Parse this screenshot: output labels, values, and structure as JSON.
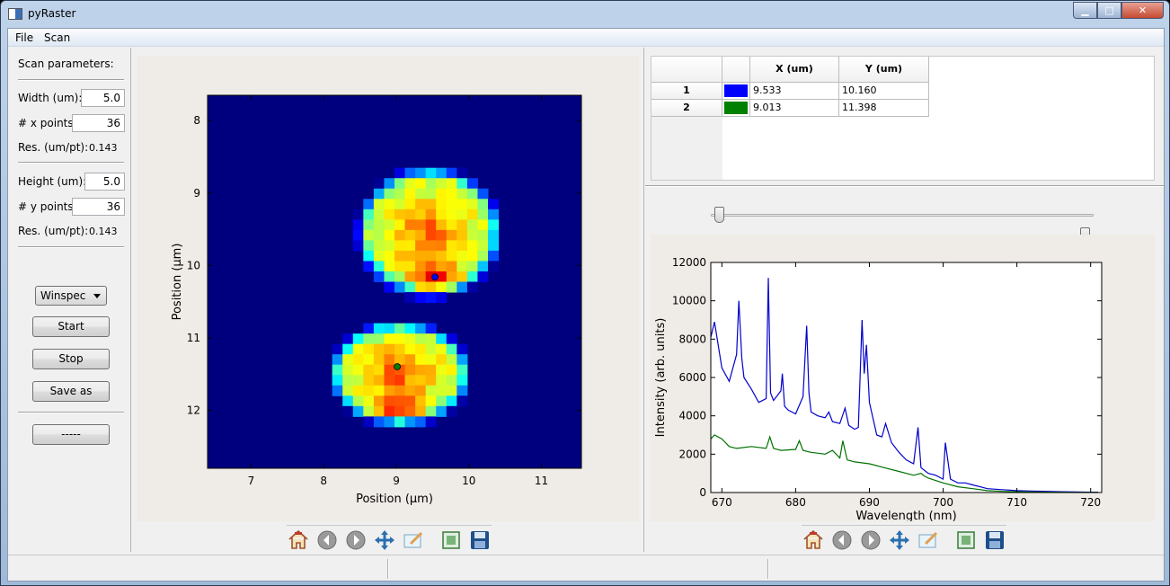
{
  "window": {
    "title": "pyRaster"
  },
  "menu": {
    "items": [
      "File",
      "Scan"
    ]
  },
  "scan_params": {
    "header": "Scan parameters:",
    "width_label": "Width (um):",
    "width_value": "5.0",
    "x_points_label": "# x points:",
    "x_points_value": "36",
    "x_res_label": "Res. (um/pt):",
    "x_res_value": "0.143",
    "height_label": "Height (um):",
    "height_value": "5.0",
    "y_points_label": "# y points:",
    "y_points_value": "36",
    "y_res_label": "Res. (um/pt):",
    "y_res_value": "0.143",
    "device_selected": "Winspec",
    "start_label": "Start",
    "stop_label": "Stop",
    "save_as_label": "Save as",
    "extra_label": "-----"
  },
  "points_table": {
    "columns": [
      "",
      "X (um)",
      "Y (um)"
    ],
    "rows": [
      {
        "index": "1",
        "color": "#0000ff",
        "x": "9.533",
        "y": "10.160"
      },
      {
        "index": "2",
        "color": "#008000",
        "x": "9.013",
        "y": "11.398"
      }
    ]
  },
  "sliders": {
    "lower_fraction": 0.01,
    "upper_fraction": 0.99
  },
  "chart_data": [
    {
      "type": "heatmap",
      "xlabel": "Position ($\\mu m$)",
      "ylabel": "Position ($\\mu m$)",
      "xlabel_display": "Position (μm)",
      "ylabel_display": "Position (μm)",
      "xlim": [
        6.4,
        11.55
      ],
      "ylim": [
        12.8,
        7.65
      ],
      "xticks": [
        7,
        8,
        9,
        10,
        11
      ],
      "yticks": [
        8,
        9,
        10,
        11,
        12
      ],
      "grid": [
        36,
        36
      ],
      "colormap": "jet",
      "lobes": [
        {
          "cx": 9.45,
          "cy": 9.55,
          "rx": 0.82,
          "ry": 0.75,
          "hot_cx": 9.55,
          "hot_cy": 10.15
        },
        {
          "cx": 9.05,
          "cy": 11.5,
          "rx": 0.8,
          "ry": 0.6,
          "hot_cx": 9.0,
          "hot_cy": 11.95
        }
      ],
      "markers": [
        {
          "x": 9.533,
          "y": 10.16,
          "color": "#0000ff"
        },
        {
          "x": 9.013,
          "y": 11.398,
          "color": "#008000"
        }
      ]
    },
    {
      "type": "line",
      "xlabel": "Wavelength (nm)",
      "ylabel": "Intensity (arb. units)",
      "xlim": [
        668.5,
        721.5
      ],
      "ylim": [
        0,
        12000
      ],
      "xticks": [
        670,
        680,
        690,
        700,
        710,
        720
      ],
      "yticks": [
        0,
        2000,
        4000,
        6000,
        8000,
        10000,
        12000
      ],
      "grid": false,
      "series": [
        {
          "color": "#0000cc",
          "x": [
            668.5,
            669,
            670,
            671,
            672,
            672.3,
            672.7,
            673,
            674,
            675,
            676,
            676.3,
            676.6,
            677,
            678,
            678.2,
            678.5,
            679,
            680,
            681,
            681.5,
            681.8,
            682.1,
            683,
            684,
            684.5,
            685,
            686,
            686.7,
            687.2,
            688,
            688.5,
            689,
            689.3,
            689.6,
            690,
            691,
            691.7,
            692.2,
            693,
            694,
            695,
            696,
            696.6,
            697,
            698,
            699,
            700,
            700.3,
            701,
            702,
            703,
            704,
            705,
            706,
            708,
            710,
            712,
            714,
            716,
            718,
            720,
            721
          ],
          "y": [
            8100,
            8900,
            6500,
            5800,
            7200,
            10000,
            7000,
            6000,
            5400,
            4700,
            4900,
            11200,
            5200,
            4800,
            5300,
            6200,
            4500,
            4300,
            4100,
            5000,
            8700,
            5200,
            4200,
            4000,
            3900,
            4200,
            3700,
            3600,
            4400,
            3500,
            3300,
            3400,
            9000,
            6200,
            7700,
            4700,
            3000,
            2900,
            3600,
            2600,
            2100,
            1700,
            1500,
            3400,
            1300,
            1000,
            900,
            700,
            2600,
            700,
            500,
            500,
            400,
            300,
            200,
            150,
            100,
            80,
            60,
            40,
            30,
            20,
            20
          ]
        },
        {
          "color": "#007000",
          "x": [
            668.5,
            669,
            670,
            671,
            672,
            674,
            676,
            676.5,
            677,
            678,
            680,
            680.5,
            681,
            682,
            684,
            685,
            686,
            686.4,
            687,
            688,
            690,
            692,
            694,
            696,
            697,
            697.5,
            698,
            700,
            702,
            704,
            706,
            708,
            710,
            712,
            714,
            716,
            718,
            720,
            721
          ],
          "y": [
            2800,
            3000,
            2800,
            2400,
            2300,
            2400,
            2300,
            2900,
            2300,
            2200,
            2250,
            2700,
            2200,
            2100,
            2000,
            2200,
            1800,
            2700,
            1700,
            1600,
            1500,
            1300,
            1100,
            900,
            1000,
            850,
            750,
            500,
            300,
            200,
            100,
            60,
            40,
            30,
            20,
            15,
            10,
            10,
            10
          ]
        }
      ]
    }
  ]
}
